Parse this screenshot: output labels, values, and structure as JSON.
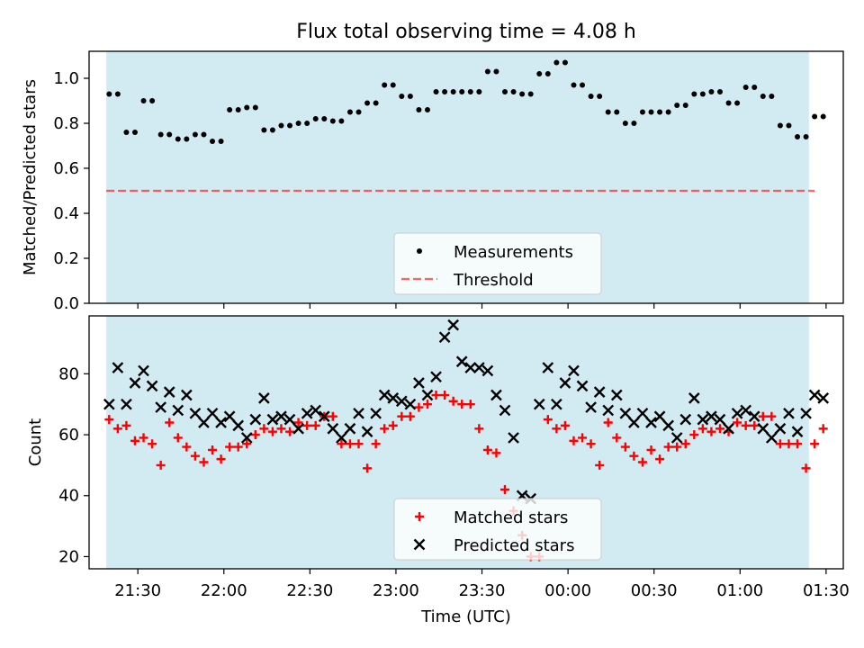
{
  "title": "Flux total observing time = 4.08 h",
  "colors": {
    "shade": "#add8e6",
    "measurement": "#000000",
    "threshold": "#ff0000",
    "matched": "#ff0000",
    "predicted": "#000000"
  },
  "chart_data": [
    {
      "type": "scatter",
      "ylabel": "Matched/Predicted stars",
      "xlim": [
        "21:13",
        "01:36"
      ],
      "ylim": [
        0,
        1.12
      ],
      "yticks": [
        "0.0",
        "0.2",
        "0.4",
        "0.6",
        "0.8",
        "1.0"
      ],
      "shaded_interval": [
        "21:19",
        "01:24"
      ],
      "legend": {
        "placement": "lower center",
        "entries": [
          "Measurements",
          "Threshold"
        ]
      },
      "threshold": {
        "name": "Threshold",
        "value": 0.5,
        "x_range": [
          "21:19",
          "01:26"
        ]
      },
      "series": [
        {
          "name": "Measurements",
          "x": [
            "21:20",
            "21:23",
            "21:26",
            "21:29",
            "21:32",
            "21:35",
            "21:38",
            "21:41",
            "21:44",
            "21:47",
            "21:50",
            "21:53",
            "21:56",
            "21:59",
            "22:02",
            "22:05",
            "22:08",
            "22:11",
            "22:14",
            "22:17",
            "22:20",
            "22:23",
            "22:26",
            "22:29",
            "22:32",
            "22:35",
            "22:38",
            "22:41",
            "22:44",
            "22:47",
            "22:50",
            "22:53",
            "22:56",
            "22:59",
            "23:02",
            "23:05",
            "23:08",
            "23:11",
            "23:14",
            "23:17",
            "23:20",
            "23:23",
            "23:26",
            "23:29",
            "23:32",
            "23:35",
            "23:38",
            "23:41",
            "23:44",
            "23:47",
            "23:50",
            "23:53",
            "23:56",
            "23:59",
            "00:02",
            "00:05",
            "00:08",
            "00:11",
            "00:14",
            "00:17",
            "00:20",
            "00:23",
            "00:26",
            "00:29",
            "00:32",
            "00:35",
            "00:38",
            "00:41",
            "00:44",
            "00:47",
            "00:50",
            "00:53",
            "00:56",
            "00:59",
            "01:02",
            "01:05",
            "01:08",
            "01:11",
            "01:14",
            "01:17",
            "01:20",
            "01:23",
            "01:26",
            "01:29"
          ],
          "values": [
            0.93,
            0.93,
            0.76,
            0.76,
            0.9,
            0.9,
            0.75,
            0.75,
            0.73,
            0.73,
            0.75,
            0.75,
            0.72,
            0.72,
            0.86,
            0.86,
            0.87,
            0.87,
            0.77,
            0.77,
            0.79,
            0.79,
            0.8,
            0.8,
            0.82,
            0.82,
            0.81,
            0.81,
            0.85,
            0.85,
            0.89,
            0.89,
            0.97,
            0.97,
            0.92,
            0.92,
            0.86,
            0.86,
            0.94,
            0.94,
            0.94,
            0.94,
            0.94,
            0.94,
            1.03,
            1.03,
            0.94,
            0.94,
            0.93,
            0.93,
            1.02,
            1.02,
            1.07,
            1.07,
            0.97,
            0.97,
            0.92,
            0.92,
            0.85,
            0.85,
            0.8,
            0.8,
            0.85,
            0.85,
            0.85,
            0.85,
            0.88,
            0.88,
            0.93,
            0.93,
            0.94,
            0.94,
            0.89,
            0.89,
            0.96,
            0.96,
            0.92,
            0.92,
            0.79,
            0.79,
            0.74,
            0.74,
            0.83,
            0.83
          ]
        }
      ]
    },
    {
      "type": "scatter",
      "xlabel": "Time (UTC)",
      "ylabel": "Count",
      "xlim": [
        "21:13",
        "01:36"
      ],
      "ylim": [
        16,
        99
      ],
      "yticks": [
        "20",
        "40",
        "60",
        "80"
      ],
      "xticks": [
        "21:30",
        "22:00",
        "22:30",
        "23:00",
        "23:30",
        "00:00",
        "00:30",
        "01:00",
        "01:30"
      ],
      "shaded_interval": [
        "21:19",
        "01:24"
      ],
      "legend": {
        "placement": "lower center",
        "entries": [
          "Matched stars",
          "Predicted stars"
        ]
      },
      "series": [
        {
          "name": "Matched stars",
          "x": [
            "21:20",
            "21:23",
            "21:26",
            "21:29",
            "21:32",
            "21:35",
            "21:38",
            "21:41",
            "21:44",
            "21:47",
            "21:50",
            "21:53",
            "21:56",
            "21:59",
            "22:02",
            "22:05",
            "22:08",
            "22:11",
            "22:14",
            "22:17",
            "22:20",
            "22:23",
            "22:26",
            "22:29",
            "22:32",
            "22:35",
            "22:38",
            "22:41",
            "22:44",
            "22:47",
            "22:50",
            "22:53",
            "22:56",
            "22:59",
            "23:02",
            "23:05",
            "23:08",
            "23:11",
            "23:14",
            "23:17",
            "23:20",
            "23:23",
            "23:26",
            "23:29",
            "23:32",
            "23:35",
            "23:38",
            "23:41",
            "23:44",
            "23:47",
            "23:50",
            "23:53",
            "23:56",
            "23:59",
            "00:02",
            "00:05",
            "00:08",
            "00:11",
            "00:14",
            "00:17",
            "00:20",
            "00:23",
            "00:26",
            "00:29",
            "00:32",
            "00:35",
            "00:38",
            "00:41",
            "00:44",
            "00:47",
            "00:50",
            "00:53",
            "00:56",
            "00:59",
            "01:02",
            "01:05",
            "01:08",
            "01:11",
            "01:14",
            "01:17",
            "01:20",
            "01:23",
            "01:26",
            "01:29"
          ],
          "values": [
            65,
            62,
            63,
            58,
            59,
            57,
            50,
            64,
            59,
            56,
            53,
            51,
            55,
            52,
            56,
            56,
            57,
            60,
            62,
            61,
            62,
            61,
            64,
            63,
            63,
            66,
            66,
            57,
            57,
            57,
            49,
            57,
            62,
            63,
            66,
            66,
            69,
            70,
            73,
            73,
            71,
            70,
            70,
            62,
            55,
            54,
            42,
            35,
            27,
            20,
            20,
            65,
            62,
            63,
            58,
            59,
            57,
            50,
            64,
            59,
            56,
            53,
            51,
            55,
            52,
            56,
            56,
            57,
            60,
            62,
            61,
            62,
            61,
            64,
            63,
            63,
            66,
            66,
            57,
            57,
            57,
            49,
            57,
            62
          ]
        },
        {
          "name": "Predicted stars",
          "x": [
            "21:20",
            "21:23",
            "21:26",
            "21:29",
            "21:32",
            "21:35",
            "21:38",
            "21:41",
            "21:44",
            "21:47",
            "21:50",
            "21:53",
            "21:56",
            "21:59",
            "22:02",
            "22:05",
            "22:08",
            "22:11",
            "22:14",
            "22:17",
            "22:20",
            "22:23",
            "22:26",
            "22:29",
            "22:32",
            "22:35",
            "22:38",
            "22:41",
            "22:44",
            "22:47",
            "22:50",
            "22:53",
            "22:56",
            "22:59",
            "23:02",
            "23:05",
            "23:08",
            "23:11",
            "23:14",
            "23:17",
            "23:20",
            "23:23",
            "23:26",
            "23:29",
            "23:32",
            "23:35",
            "23:38",
            "23:41",
            "23:44",
            "23:47",
            "23:50",
            "23:53",
            "23:56",
            "23:59",
            "00:02",
            "00:05",
            "00:08",
            "00:11",
            "00:14",
            "00:17",
            "00:20",
            "00:23",
            "00:26",
            "00:29",
            "00:32",
            "00:35",
            "00:38",
            "00:41",
            "00:44",
            "00:47",
            "00:50",
            "00:53",
            "00:56",
            "00:59",
            "01:02",
            "01:05",
            "01:08",
            "01:11",
            "01:14",
            "01:17",
            "01:20",
            "01:23",
            "01:26",
            "01:29"
          ],
          "values": [
            70,
            82,
            70,
            77,
            81,
            76,
            69,
            74,
            68,
            73,
            67,
            64,
            67,
            64,
            66,
            63,
            59,
            65,
            72,
            65,
            66,
            65,
            62,
            67,
            68,
            66,
            62,
            59,
            62,
            67,
            61,
            67,
            73,
            72,
            71,
            70,
            77,
            73,
            79,
            92,
            96,
            84,
            82,
            82,
            81,
            73,
            68,
            59,
            40,
            39,
            70,
            82,
            70,
            77,
            81,
            76,
            69,
            74,
            68,
            73,
            67,
            64,
            67,
            64,
            66,
            63,
            59,
            65,
            72,
            65,
            66,
            65,
            62,
            67,
            68,
            66,
            62,
            59,
            62,
            67,
            61,
            67,
            73,
            72
          ]
        }
      ]
    }
  ]
}
